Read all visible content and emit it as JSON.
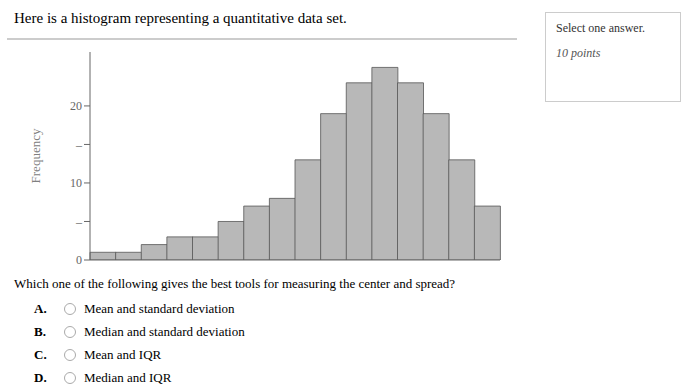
{
  "chart_data": {
    "type": "histogram",
    "title": "Here is a histogram representing a quantitative data set.",
    "categories": [
      null,
      null,
      null,
      null,
      null,
      null,
      null,
      null,
      null,
      null,
      null,
      null,
      null,
      null,
      null,
      null
    ],
    "values": [
      1,
      1,
      2,
      3,
      3,
      5,
      7,
      8,
      13,
      19,
      23,
      25,
      23,
      19,
      13,
      7
    ],
    "color": "#b8b8b8",
    "ylabel": "Frequency",
    "ylim": [
      0,
      27
    ],
    "yticks": [
      0,
      {
        "value": 5,
        "label": "–"
      },
      10,
      {
        "value": 15,
        "label": "–"
      },
      20
    ],
    "grid": false,
    "tick_labels": "y",
    "annotations": [
      "Select one answer.",
      "10 points",
      "Which one of the following gives the best tools for measuring the center and spread?",
      "A. Mean and standard deviation",
      "B. Median and standard deviation",
      "C. Mean and IQR",
      "D. Median and IQR"
    ]
  }
}
